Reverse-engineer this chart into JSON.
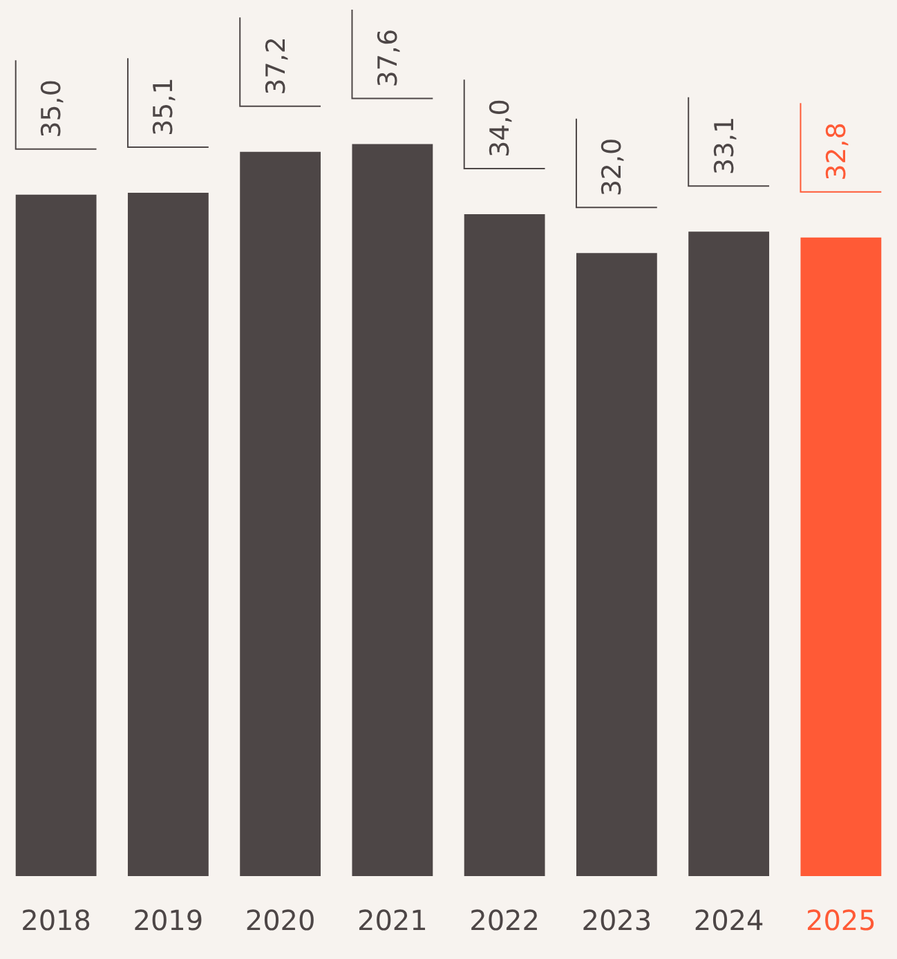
{
  "chart_data": {
    "type": "bar",
    "categories": [
      "2018",
      "2019",
      "2020",
      "2021",
      "2022",
      "2023",
      "2024",
      "2025"
    ],
    "values": [
      35.0,
      35.1,
      37.2,
      37.6,
      34.0,
      32.0,
      33.1,
      32.8
    ],
    "value_labels": [
      "35,0",
      "35,1",
      "37,2",
      "37,6",
      "34,0",
      "32,0",
      "33,1",
      "32,8"
    ],
    "colors": [
      "#4d4646",
      "#4d4646",
      "#4d4646",
      "#4d4646",
      "#4d4646",
      "#4d4646",
      "#4d4646",
      "#ff5a36"
    ],
    "grid": false,
    "legend": false
  }
}
